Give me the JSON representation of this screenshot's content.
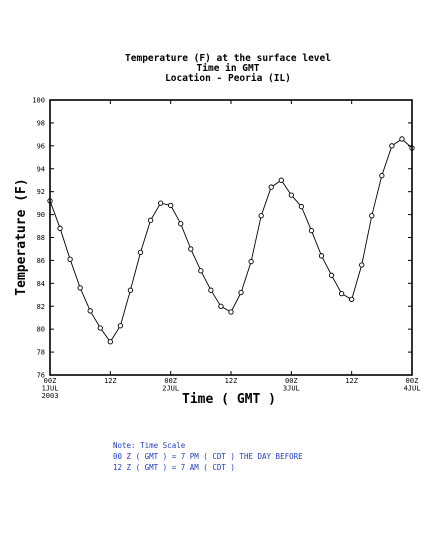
{
  "chart_data": {
    "type": "line",
    "title_lines": [
      "Temperature (F) at the surface level",
      "Time in GMT",
      "Location - Peoria (IL)"
    ],
    "xlabel": "Time ( GMT )",
    "ylabel": "Temperature (F)",
    "ylim": [
      76,
      100
    ],
    "yticks": [
      76,
      78,
      80,
      82,
      84,
      86,
      88,
      90,
      92,
      94,
      96,
      98,
      100
    ],
    "xlim": [
      0,
      72
    ],
    "xticks": [
      {
        "x": 0,
        "lines": [
          "00Z",
          "1JUL",
          "2003"
        ]
      },
      {
        "x": 12,
        "lines": [
          "12Z"
        ]
      },
      {
        "x": 24,
        "lines": [
          "00Z",
          "2JUL"
        ]
      },
      {
        "x": 36,
        "lines": [
          "12Z"
        ]
      },
      {
        "x": 48,
        "lines": [
          "00Z",
          "3JUL"
        ]
      },
      {
        "x": 60,
        "lines": [
          "12Z"
        ]
      },
      {
        "x": 72,
        "lines": [
          "00Z",
          "4JUL"
        ]
      }
    ],
    "marker": "open-circle",
    "x": [
      0,
      2,
      4,
      6,
      8,
      10,
      12,
      14,
      16,
      18,
      20,
      22,
      24,
      26,
      28,
      30,
      32,
      34,
      36,
      38,
      40,
      42,
      44,
      46,
      48,
      50,
      52,
      54,
      56,
      58,
      60,
      62,
      64,
      66,
      68,
      70,
      72
    ],
    "values": [
      91.2,
      88.8,
      86.1,
      83.6,
      81.6,
      80.1,
      78.9,
      80.3,
      83.4,
      86.7,
      89.5,
      91.0,
      90.8,
      89.2,
      87.0,
      85.1,
      83.4,
      82.0,
      81.5,
      83.2,
      85.9,
      89.9,
      92.4,
      93.0,
      91.7,
      90.7,
      88.6,
      86.4,
      84.7,
      83.1,
      82.6,
      85.6,
      89.9,
      93.4,
      96.0,
      96.6,
      95.8
    ]
  },
  "note": {
    "lines": [
      "Note: Time Scale",
      "00 Z ( GMT ) = 7 PM ( CDT ) THE DAY BEFORE",
      "12 Z ( GMT ) = 7 AM ( CDT )"
    ]
  }
}
